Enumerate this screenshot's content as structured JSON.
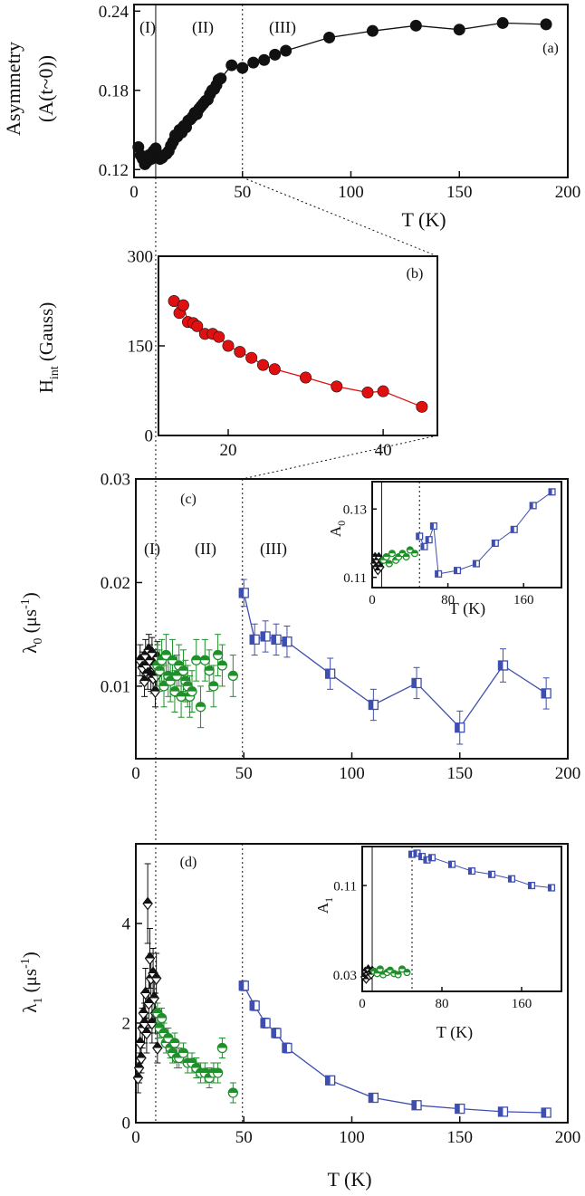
{
  "colors": {
    "black": "#111111",
    "red": "#e01010",
    "green": "#1f8f2a",
    "blue": "#3f4fb0"
  },
  "chart_data": [
    {
      "id": "a",
      "type": "scatter",
      "panel_label": "(a)",
      "xlabel": "T (K)",
      "ylabel_line1": "Asymmetry",
      "ylabel_line2": "(A(t~0))",
      "xlim": [
        0,
        200
      ],
      "ylim": [
        0.114,
        0.245
      ],
      "xticks": [
        0,
        50,
        100,
        150,
        200
      ],
      "yticks": [
        0.12,
        0.18,
        0.24
      ],
      "region_labels": [
        "(I)",
        "(II)",
        "(III)"
      ],
      "series": [
        {
          "name": "A(t~0)",
          "color": "#111111",
          "marker": "circle",
          "x": [
            2,
            3,
            4,
            5,
            6,
            7,
            8,
            9,
            10,
            11,
            12,
            13,
            14,
            15,
            16,
            17,
            18,
            19,
            20,
            21,
            22,
            23,
            24,
            25,
            26,
            27,
            28,
            29,
            30,
            31,
            32,
            33,
            34,
            35,
            36,
            37,
            38,
            39,
            40,
            45,
            50,
            55,
            60,
            65,
            70,
            90,
            110,
            130,
            150,
            170,
            190
          ],
          "y": [
            0.137,
            0.131,
            0.128,
            0.124,
            0.126,
            0.131,
            0.128,
            0.134,
            0.136,
            0.13,
            0.128,
            0.129,
            0.131,
            0.132,
            0.134,
            0.138,
            0.141,
            0.146,
            0.145,
            0.15,
            0.148,
            0.153,
            0.152,
            0.157,
            0.158,
            0.16,
            0.163,
            0.162,
            0.166,
            0.168,
            0.17,
            0.172,
            0.173,
            0.177,
            0.18,
            0.181,
            0.184,
            0.188,
            0.189,
            0.199,
            0.197,
            0.201,
            0.203,
            0.207,
            0.21,
            0.22,
            0.225,
            0.229,
            0.226,
            0.231,
            0.23
          ]
        }
      ]
    },
    {
      "id": "b",
      "type": "line",
      "panel_label": "(b)",
      "xlabel": "",
      "ylabel": "H",
      "ylabel_sub": "int",
      "ylabel_rest": " (Gauss)",
      "xlim": [
        11,
        47
      ],
      "ylim": [
        0,
        300
      ],
      "xticks": [
        20,
        40
      ],
      "yticks": [
        0,
        150,
        300
      ],
      "series": [
        {
          "name": "H_int",
          "color": "#e01010",
          "marker": "circle",
          "x": [
            13,
            13.7,
            14.2,
            14.8,
            15.5,
            16,
            17,
            18,
            18.8,
            20,
            21.5,
            23,
            24.5,
            26,
            30,
            34,
            38,
            40,
            45
          ],
          "y": [
            225,
            205,
            218,
            190,
            188,
            183,
            170,
            170,
            165,
            150,
            140,
            130,
            118,
            111,
            97,
            82,
            72,
            74,
            48
          ]
        }
      ]
    },
    {
      "id": "c",
      "type": "scatter",
      "panel_label": "(c)",
      "xlabel": "",
      "ylabel": "λ",
      "ylabel_sub": "0",
      "ylabel_rest": " (μs",
      "ylabel_sup": "-1",
      "ylabel_end": ")",
      "xlim": [
        0,
        200
      ],
      "ylim": [
        0.003,
        0.03
      ],
      "xticks": [
        0,
        50,
        100,
        150,
        200
      ],
      "yticks": [
        0.01,
        0.02,
        0.03
      ],
      "region_labels": [
        "(I)",
        "(II)",
        "(III)"
      ],
      "series": [
        {
          "name": "region I",
          "color": "#111111",
          "marker": "diamond",
          "x": [
            2,
            3,
            4,
            4.5,
            5,
            5.5,
            6,
            6.5,
            7,
            7.5,
            8,
            8.5,
            9,
            9.5,
            10
          ],
          "y": [
            0.0125,
            0.0118,
            0.0105,
            0.013,
            0.012,
            0.0112,
            0.0135,
            0.0125,
            0.011,
            0.0132,
            0.0108,
            0.012,
            0.0095,
            0.011,
            0.0128
          ],
          "err": [
            0.0015,
            0.0015,
            0.0015,
            0.0015,
            0.0015,
            0.0015,
            0.0015,
            0.0015,
            0.0015,
            0.0015,
            0.0015,
            0.0015,
            0.0015,
            0.0015,
            0.0015
          ]
        },
        {
          "name": "region II",
          "color": "#1f8f2a",
          "marker": "circle-half",
          "x": [
            10,
            11,
            12,
            13,
            14,
            15,
            16,
            17,
            18,
            19,
            20,
            21,
            22,
            23,
            24,
            25,
            26,
            28,
            30,
            32,
            34,
            36,
            38,
            40,
            45
          ],
          "y": [
            0.012,
            0.0115,
            0.0125,
            0.01,
            0.013,
            0.011,
            0.0105,
            0.0125,
            0.0095,
            0.011,
            0.012,
            0.009,
            0.0115,
            0.0105,
            0.01,
            0.009,
            0.0095,
            0.0125,
            0.008,
            0.0125,
            0.0115,
            0.01,
            0.013,
            0.012,
            0.011
          ],
          "err": [
            0.002,
            0.002,
            0.002,
            0.002,
            0.002,
            0.002,
            0.002,
            0.002,
            0.002,
            0.002,
            0.002,
            0.002,
            0.002,
            0.002,
            0.002,
            0.002,
            0.002,
            0.002,
            0.002,
            0.002,
            0.002,
            0.002,
            0.002,
            0.002,
            0.002
          ]
        },
        {
          "name": "region III",
          "color": "#3f4fb0",
          "marker": "square-half",
          "connect": true,
          "x": [
            50,
            55,
            60,
            65,
            70,
            90,
            110,
            130,
            150,
            170,
            190
          ],
          "y": [
            0.019,
            0.0145,
            0.0148,
            0.0145,
            0.0143,
            0.0112,
            0.0082,
            0.0103,
            0.006,
            0.012,
            0.0093
          ],
          "err": [
            0.0013,
            0.0015,
            0.0015,
            0.0015,
            0.0015,
            0.0015,
            0.0015,
            0.0015,
            0.0016,
            0.0016,
            0.0015
          ]
        }
      ],
      "inset": {
        "xlabel": "T (K)",
        "ylabel": "A",
        "ylabel_sub": "0",
        "xlim": [
          0,
          200
        ],
        "ylim": [
          0.107,
          0.138
        ],
        "xticks": [
          0,
          80,
          160
        ],
        "yticks": [
          0.11,
          0.13
        ],
        "series": [
          {
            "name": "region I",
            "color": "#111111",
            "marker": "diamond",
            "x": [
              2,
              3,
              4,
              5,
              6,
              7,
              8,
              9,
              10
            ],
            "y": [
              0.114,
              0.116,
              0.113,
              0.115,
              0.112,
              0.116,
              0.114,
              0.113,
              0.115
            ]
          },
          {
            "name": "region II",
            "color": "#1f8f2a",
            "marker": "circle-half",
            "x": [
              12,
              15,
              18,
              21,
              25,
              28,
              32,
              36,
              40,
              45
            ],
            "y": [
              0.115,
              0.116,
              0.114,
              0.117,
              0.115,
              0.116,
              0.117,
              0.116,
              0.118,
              0.117
            ]
          },
          {
            "name": "region III",
            "color": "#3f4fb0",
            "marker": "square-half",
            "connect": true,
            "x": [
              50,
              55,
              60,
              65,
              70,
              90,
              110,
              130,
              150,
              170,
              190
            ],
            "y": [
              0.122,
              0.119,
              0.121,
              0.125,
              0.111,
              0.112,
              0.114,
              0.12,
              0.124,
              0.131,
              0.135
            ]
          }
        ]
      }
    },
    {
      "id": "d",
      "type": "scatter",
      "panel_label": "(d)",
      "xlabel": "T (K)",
      "ylabel": "λ",
      "ylabel_sub": "1",
      "ylabel_rest": " (μs",
      "ylabel_sup": "-1",
      "ylabel_end": ")",
      "xlim": [
        0,
        200
      ],
      "ylim": [
        0,
        5.6
      ],
      "xticks": [
        0,
        50,
        100,
        150,
        200
      ],
      "yticks": [
        0,
        2,
        4
      ],
      "series": [
        {
          "name": "region I",
          "color": "#111111",
          "marker": "diamond",
          "x": [
            1,
            1.5,
            2,
            2.5,
            3,
            3.5,
            4,
            4.5,
            5,
            5.5,
            6,
            6.5,
            7,
            7.5,
            8,
            8.5,
            9,
            9.5,
            10
          ],
          "y": [
            0.9,
            1.1,
            1.6,
            1.3,
            1.9,
            2.2,
            2.0,
            2.6,
            1.8,
            4.4,
            2.4,
            3.3,
            2.9,
            2.0,
            3.0,
            2.5,
            2.2,
            2.9,
            1.5
          ],
          "err": [
            0.3,
            0.3,
            0.4,
            0.3,
            0.4,
            0.4,
            0.4,
            0.5,
            0.4,
            0.8,
            0.5,
            0.6,
            0.5,
            0.4,
            0.5,
            0.5,
            0.4,
            0.5,
            0.3
          ]
        },
        {
          "name": "region II",
          "color": "#1f8f2a",
          "marker": "circle-half",
          "x": [
            10,
            11,
            12,
            13,
            14,
            15,
            16,
            17,
            18,
            19,
            20,
            22,
            24,
            26,
            28,
            30,
            32,
            34,
            36,
            38,
            40,
            45
          ],
          "y": [
            2.2,
            1.9,
            2.1,
            1.8,
            1.6,
            1.7,
            1.5,
            1.4,
            1.6,
            1.3,
            1.3,
            1.4,
            1.2,
            1.2,
            1.1,
            1.0,
            1.0,
            0.9,
            1.0,
            1.0,
            1.5,
            0.6
          ],
          "err": [
            0.2,
            0.2,
            0.2,
            0.2,
            0.2,
            0.2,
            0.2,
            0.2,
            0.2,
            0.2,
            0.2,
            0.2,
            0.2,
            0.2,
            0.2,
            0.2,
            0.2,
            0.2,
            0.2,
            0.2,
            0.2,
            0.2
          ]
        },
        {
          "name": "region III",
          "color": "#3f4fb0",
          "marker": "square-half",
          "connect": true,
          "x": [
            50,
            55,
            60,
            65,
            70,
            90,
            110,
            130,
            150,
            170,
            190
          ],
          "y": [
            2.75,
            2.35,
            2.0,
            1.8,
            1.5,
            0.85,
            0.5,
            0.35,
            0.28,
            0.22,
            0.2
          ],
          "err": [
            0.1,
            0.1,
            0.1,
            0.1,
            0.1,
            0.08,
            0.08,
            0.05,
            0.05,
            0.05,
            0.05
          ]
        }
      ],
      "inset": {
        "xlabel": "T (K)",
        "ylabel": "A",
        "ylabel_sub": "1",
        "xlim": [
          0,
          200
        ],
        "ylim": [
          0.015,
          0.145
        ],
        "xticks": [
          0,
          80,
          160
        ],
        "yticks": [
          0.03,
          0.11
        ],
        "series": [
          {
            "name": "region I",
            "color": "#111111",
            "marker": "diamond",
            "x": [
              2,
              3,
              4,
              5,
              6,
              7,
              8,
              9,
              10
            ],
            "y": [
              0.028,
              0.033,
              0.026,
              0.031,
              0.035,
              0.029,
              0.032,
              0.03,
              0.034
            ]
          },
          {
            "name": "region II",
            "color": "#1f8f2a",
            "marker": "circle-half",
            "x": [
              12,
              15,
              18,
              21,
              25,
              28,
              32,
              36,
              40,
              45
            ],
            "y": [
              0.033,
              0.031,
              0.035,
              0.03,
              0.032,
              0.034,
              0.031,
              0.03,
              0.035,
              0.032
            ]
          },
          {
            "name": "region III",
            "color": "#3f4fb0",
            "marker": "square-half",
            "connect": true,
            "x": [
              50,
              55,
              60,
              65,
              70,
              90,
              110,
              130,
              150,
              170,
              190
            ],
            "y": [
              0.138,
              0.139,
              0.136,
              0.133,
              0.135,
              0.129,
              0.123,
              0.12,
              0.116,
              0.11,
              0.108
            ]
          }
        ]
      }
    }
  ]
}
